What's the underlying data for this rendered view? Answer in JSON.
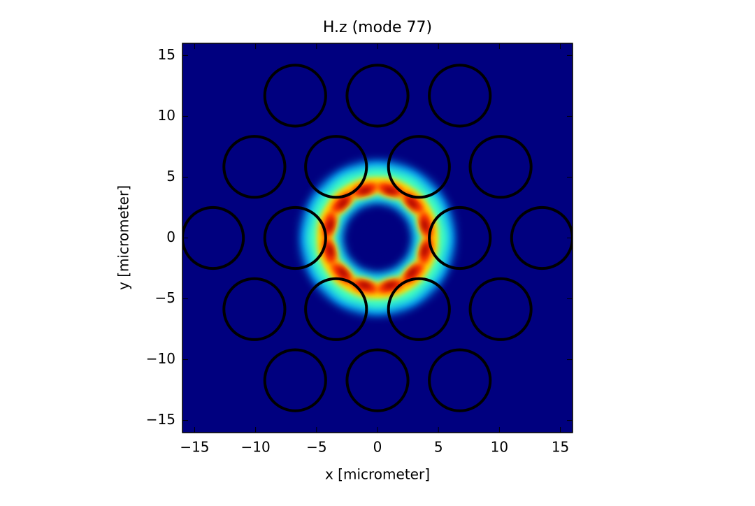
{
  "chart_data": {
    "type": "scatter",
    "title": "H.z (mode 77)",
    "xlabel": "x [micrometer]",
    "ylabel": "y [micrometer]",
    "x": [
      -6.75,
      0,
      6.75,
      -10.1,
      -3.4,
      3.4,
      10.1,
      -13.5,
      -6.75,
      6.75,
      13.5,
      -10.1,
      -3.4,
      3.4,
      10.1,
      -6.75,
      0,
      6.75
    ],
    "y": [
      11.7,
      11.7,
      11.7,
      5.85,
      5.85,
      5.85,
      5.85,
      0,
      0,
      0,
      0,
      -5.85,
      -5.85,
      -5.85,
      -5.85,
      -11.7,
      -11.7,
      -11.7
    ],
    "radius": 2.5,
    "color": "#000000",
    "background": "#00007f",
    "xlim": [
      -16,
      16
    ],
    "ylim": [
      -16,
      16
    ],
    "xticks": [
      {
        "value": -15,
        "label": "−15"
      },
      {
        "value": -10,
        "label": "−10"
      },
      {
        "value": -5,
        "label": "−5"
      },
      0,
      5,
      10,
      15
    ],
    "yticks": [
      {
        "value": -15,
        "label": "−15"
      },
      {
        "value": -10,
        "label": "−10"
      },
      {
        "value": -5,
        "label": "−5"
      },
      0,
      5,
      10,
      15
    ]
  }
}
